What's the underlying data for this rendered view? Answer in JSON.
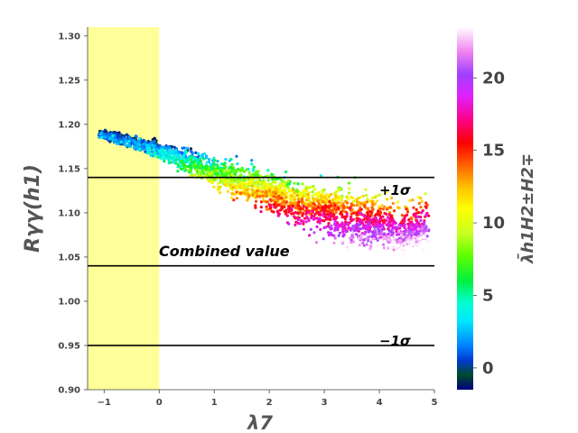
{
  "chart_data": {
    "type": "scatter",
    "xlabel": "λ7",
    "ylabel": "Rγγ(h1)",
    "xlim": [
      -1.3,
      5.0
    ],
    "ylim": [
      0.9,
      1.31
    ],
    "xticks": [
      -1,
      0,
      1,
      2,
      3,
      4,
      5
    ],
    "yticks": [
      0.9,
      0.95,
      1.0,
      1.05,
      1.1,
      1.15,
      1.2,
      1.25,
      1.3
    ],
    "xtick_labels": [
      "−1",
      "0",
      "1",
      "2",
      "3",
      "4",
      "5"
    ],
    "ytick_labels": [
      "0.90",
      "0.95",
      "1.00",
      "1.05",
      "1.10",
      "1.15",
      "1.20",
      "1.25",
      "1.30"
    ],
    "grid": false,
    "shaded_region": {
      "x": [
        -1.3,
        0.0
      ],
      "color": "#ffff99"
    },
    "hlines": [
      {
        "y": 1.14,
        "label": "+1σ"
      },
      {
        "y": 1.04,
        "label": "Combined value"
      },
      {
        "y": 0.95,
        "label": "−1σ"
      }
    ],
    "colorbar": {
      "label": "λ̄h1H2±H2∓",
      "range": [
        -1.5,
        23.5
      ],
      "ticks": [
        0,
        5,
        10,
        15,
        20
      ],
      "tick_labels": [
        "0",
        "5",
        "10",
        "15",
        "20"
      ],
      "colormap": "gist_ncar"
    },
    "band_description": "Points cluster along y ≈ 1.17 − 0.02·λ7, widening with λ7; color increases with λ7",
    "series_points": [
      {
        "x": -1.1,
        "y": 1.19,
        "c": 0
      },
      {
        "x": -0.5,
        "y": 1.18,
        "c": 1
      },
      {
        "x": 0.0,
        "y": 1.17,
        "c": 2
      },
      {
        "x": 0.5,
        "y": 1.16,
        "c": 4
      },
      {
        "x": 1.0,
        "y": 1.145,
        "c": 7
      },
      {
        "x": 1.5,
        "y": 1.135,
        "c": 9
      },
      {
        "x": 2.0,
        "y": 1.125,
        "c": 11
      },
      {
        "x": 2.5,
        "y": 1.11,
        "c": 13
      },
      {
        "x": 3.0,
        "y": 1.105,
        "c": 14
      },
      {
        "x": 3.5,
        "y": 1.095,
        "c": 16
      },
      {
        "x": 4.0,
        "y": 1.085,
        "c": 18
      },
      {
        "x": 4.5,
        "y": 1.075,
        "c": 20
      },
      {
        "x": 4.9,
        "y": 1.08,
        "c": 21
      }
    ]
  }
}
